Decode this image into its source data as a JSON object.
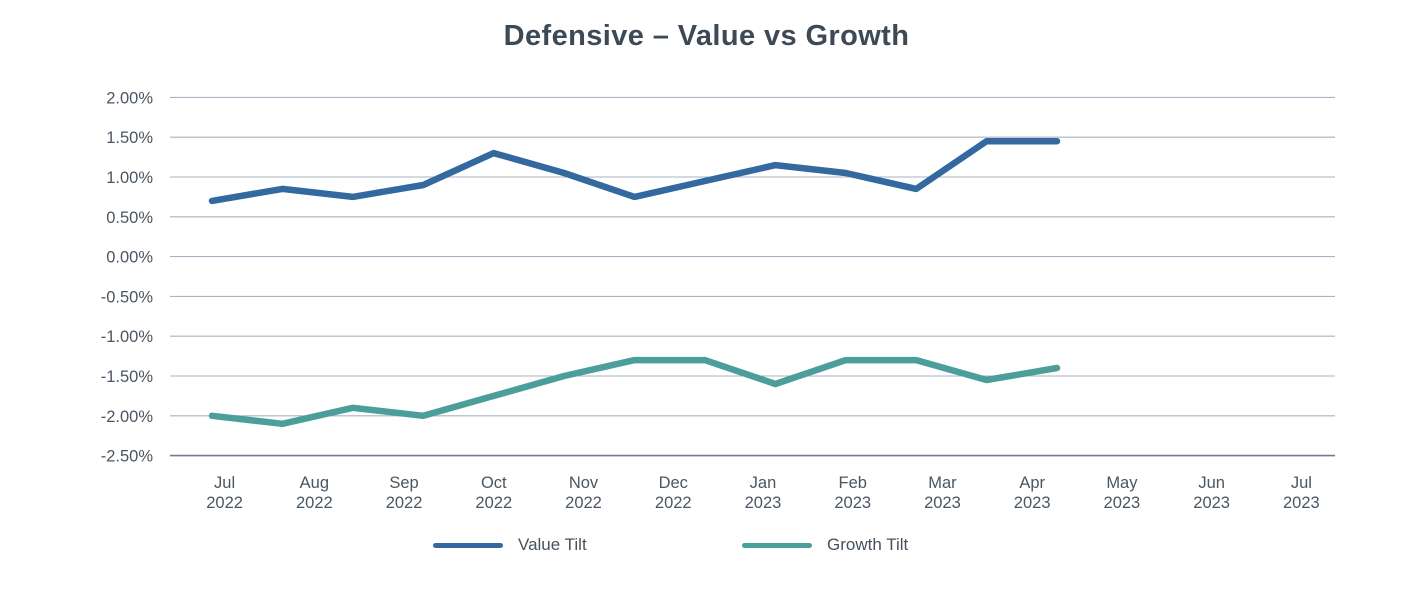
{
  "chart_data": {
    "type": "line",
    "title": "Defensive – Value vs Growth",
    "xlabel": "",
    "ylabel": "",
    "unit": "%",
    "ylim": [
      -2.5,
      2.0
    ],
    "y_tick_step": 0.5,
    "grid": "horizontal",
    "legend_position": "bottom",
    "x_labels": [
      "Jul 2022",
      "Aug 2022",
      "Sep 2022",
      "Oct 2022",
      "Nov 2022",
      "Dec 2022",
      "Jan 2023",
      "Feb 2023",
      "Mar 2023",
      "Apr 2023",
      "May 2023",
      "Jun 2023",
      "Jul 2023"
    ],
    "y_ticks": [
      {
        "label": "2.00%",
        "value": 2.0
      },
      {
        "label": "1.50%",
        "value": 1.5
      },
      {
        "label": "1.00%",
        "value": 1.0
      },
      {
        "label": "0.50%",
        "value": 0.5
      },
      {
        "label": "0.00%",
        "value": 0.0
      },
      {
        "label": "-0.50%",
        "value": -0.5
      },
      {
        "label": "-1.00%",
        "value": -1.0
      },
      {
        "label": "-1.50%",
        "value": -1.5
      },
      {
        "label": "-2.00%",
        "value": -2.0
      },
      {
        "label": "-2.50%",
        "value": -2.5
      }
    ],
    "series": [
      {
        "name": "Value Tilt",
        "color": "#33699e",
        "values": [
          0.7,
          0.85,
          0.75,
          0.9,
          1.3,
          1.05,
          0.75,
          0.95,
          1.15,
          1.05,
          0.85,
          1.45,
          1.45
        ]
      },
      {
        "name": "Growth Tilt",
        "color": "#4b9e99",
        "values": [
          -2.0,
          -2.1,
          -1.9,
          -2.0,
          -1.75,
          -1.5,
          -1.3,
          -1.3,
          -1.6,
          -1.3,
          -1.3,
          -1.55,
          -1.4
        ]
      }
    ],
    "colors": {
      "gridline": "#a9b3c3",
      "baseline": "#6f7c89",
      "tick_text": "#4a5661",
      "title_text": "#3d4a55"
    }
  }
}
